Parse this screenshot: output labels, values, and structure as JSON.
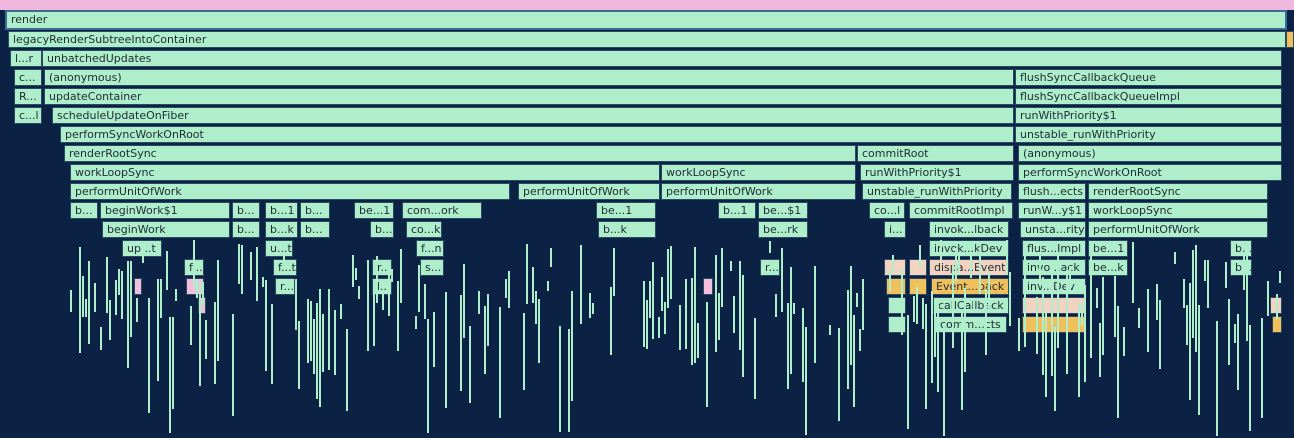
{
  "flamegraph": {
    "rows": [
      [
        "render"
      ],
      [
        "legacyRenderSubtreeIntoContainer"
      ],
      [
        "l...r",
        "unbatchedUpdates"
      ],
      [
        "c...",
        "(anonymous)",
        "flushSyncCallbackQueue"
      ],
      [
        "R...",
        "updateContainer",
        "flushSyncCallbackQueueImpl"
      ],
      [
        "c...l",
        "scheduleUpdateOnFiber",
        "runWithPriority$1"
      ],
      [
        "performSyncWorkOnRoot",
        "unstable_runWithPriority"
      ],
      [
        "renderRootSync",
        "commitRoot",
        "(anonymous)"
      ],
      [
        "workLoopSync",
        "workLoopSync",
        "runWithPriority$1",
        "performSyncWorkOnRoot"
      ],
      [
        "performUnitOfWork",
        "performUnitOfWork",
        "performUnitOfWork",
        "unstable_runWithPriority",
        "flush...ects",
        "renderRootSync"
      ],
      [
        "b...",
        "beginWork$1",
        "b...",
        "b...1",
        "b...",
        "be...1",
        "com...ork",
        "be...1",
        "b...1",
        "be...$1",
        "co...l",
        "commitRootImpl",
        "runW...y$1",
        "workLoopSync"
      ],
      [
        "beginWork",
        "b...",
        "b...k",
        "b...",
        "b...",
        "co...k",
        "b...k",
        "be...rk",
        "i...",
        "invok...lback",
        "unsta...rity",
        "performUnitOfWork"
      ],
      [
        "up...t",
        "u...t",
        "f...n",
        "invok...kDev",
        "flus...Impl",
        "be...1",
        "b..."
      ],
      [
        "f...",
        "f...t",
        "r...",
        "s...",
        "r...",
        "dispa...Event",
        "invo...ack",
        "be...k",
        "b..."
      ],
      [
        "r...",
        "l...",
        "Event...back",
        "inv...Dev"
      ],
      [
        "callCallback"
      ],
      [
        "comm...cts"
      ]
    ]
  }
}
